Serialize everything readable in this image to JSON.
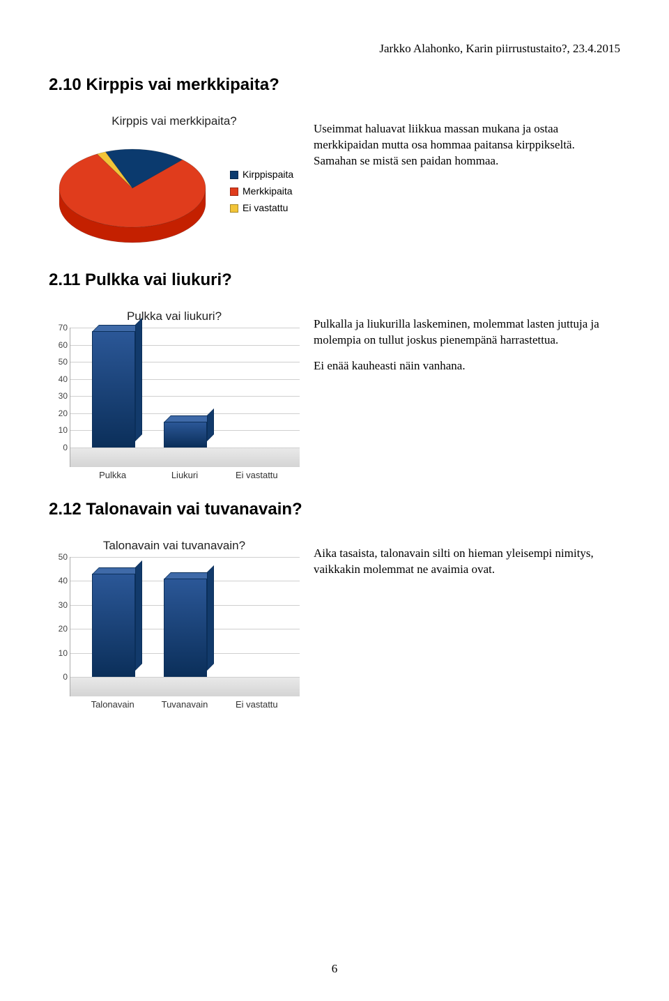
{
  "header": "Jarkko Alahonko, Karin piirrustustaito?, 23.4.2015",
  "page_number": "6",
  "sections": {
    "s1": {
      "heading": "2.10 Kirppis vai merkkipaita?",
      "text": "Useimmat haluavat liikkua massan mukana ja ostaa merkkipaidan mutta osa hommaa paitansa kirppikseltä. Samahan se mistä sen paidan hommaa.",
      "chart": {
        "type": "pie-3d",
        "title": "Kirppis vai merkkipaita?",
        "slices": [
          {
            "label": "Kirppispaita",
            "value": 18,
            "color": "#0b3a6e"
          },
          {
            "label": "Merkkipaita",
            "value": 80,
            "color": "#e03c1c"
          },
          {
            "label": "Ei vastattu",
            "value": 2,
            "color": "#f2c438"
          }
        ],
        "bg": "#ffffff"
      }
    },
    "s2": {
      "heading": "2.11 Pulkka vai liukuri?",
      "text1": "Pulkalla ja liukurilla laskeminen, molemmat lasten juttuja ja molempia on tullut joskus pienempänä harrastettua.",
      "text2": "Ei enää kauheasti näin vanhana.",
      "chart": {
        "type": "bar-3d",
        "title": "Pulkka vai liukuri?",
        "categories": [
          "Pulkka",
          "Liukuri",
          "Ei vastattu"
        ],
        "values": [
          68,
          15,
          0
        ],
        "ymax": 70,
        "ytick_step": 10,
        "bar_color": "#164a86",
        "grid_color": "#cfcfcf"
      }
    },
    "s3": {
      "heading": "2.12 Talonavain vai tuvanavain?",
      "text": "Aika tasaista, talonavain silti on hieman yleisempi nimitys, vaikkakin molemmat ne avaimia ovat.",
      "chart": {
        "type": "bar-3d",
        "title": "Talonavain vai tuvanavain?",
        "categories": [
          "Talonavain",
          "Tuvanavain",
          "Ei vastattu"
        ],
        "values": [
          43,
          41,
          0
        ],
        "ymax": 50,
        "ytick_step": 10,
        "bar_color": "#164a86",
        "grid_color": "#cfcfcf"
      }
    }
  }
}
